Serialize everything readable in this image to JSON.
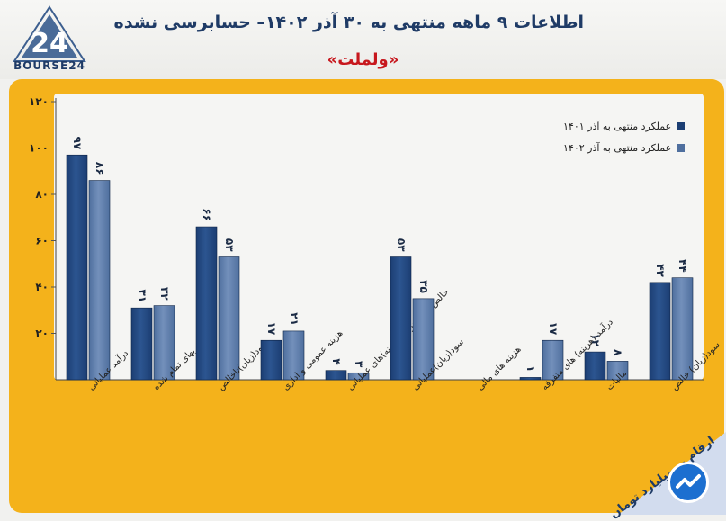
{
  "header": {
    "title": "اطلاعات ۹ ماهه منتهی به ۳۰ آذر ۱۴۰۲– حسابرسی نشده",
    "subtitle": "«ولملت»",
    "logo_text": "BOURSE24",
    "logo_mark": "24"
  },
  "corner": {
    "note": "ارقام به میلیارد تومان",
    "icon": "trend-arrow-icon"
  },
  "colors": {
    "frame": "#f4b21b",
    "series_1401": "#1c3e73",
    "series_1402": "#4f6f9e",
    "title": "#1f3b66",
    "subtitle": "#c7171d"
  },
  "chart_data": {
    "type": "bar",
    "categories": [
      "درآمد عملیاتی",
      "بهای تمام شده",
      "سود(زیان)ناخالص",
      "هزینه عمومی و اداری",
      "خالص سایر درآمد(هزینه)های عملیاتی",
      "سود(زیان)عملیاتی",
      "هزینه های مالی",
      "درآمد (هزینه) های متفرقه",
      "مالیات",
      "سود(زیان) خالص"
    ],
    "series": [
      {
        "name": "عملکرد منتهی به آذر ۱۴۰۱",
        "values": [
          97,
          31,
          66,
          17,
          4,
          53,
          0,
          1,
          12,
          42
        ],
        "labels": [
          "۹۷",
          "۳۱",
          "۶۶",
          "۱۷",
          "۴",
          "۵۳",
          "",
          "۱",
          "۱۲",
          "۴۲"
        ]
      },
      {
        "name": "عملکرد منتهی به آذر ۱۴۰۲",
        "values": [
          86,
          32,
          53,
          21,
          3,
          35,
          0,
          17,
          8,
          44
        ],
        "labels": [
          "۸۶",
          "۳۲",
          "۵۳",
          "۲۱",
          "۳",
          "۳۵",
          "",
          "۱۷",
          "۸",
          "۴۴"
        ]
      }
    ],
    "yticks": [
      20,
      40,
      60,
      80,
      100,
      120
    ],
    "ytick_labels": [
      "۲۰",
      "۴۰",
      "۶۰",
      "۸۰",
      "۱۰۰",
      "۱۲۰"
    ],
    "ylim": [
      0,
      120
    ],
    "legend_position": "top-right",
    "grid": false
  }
}
